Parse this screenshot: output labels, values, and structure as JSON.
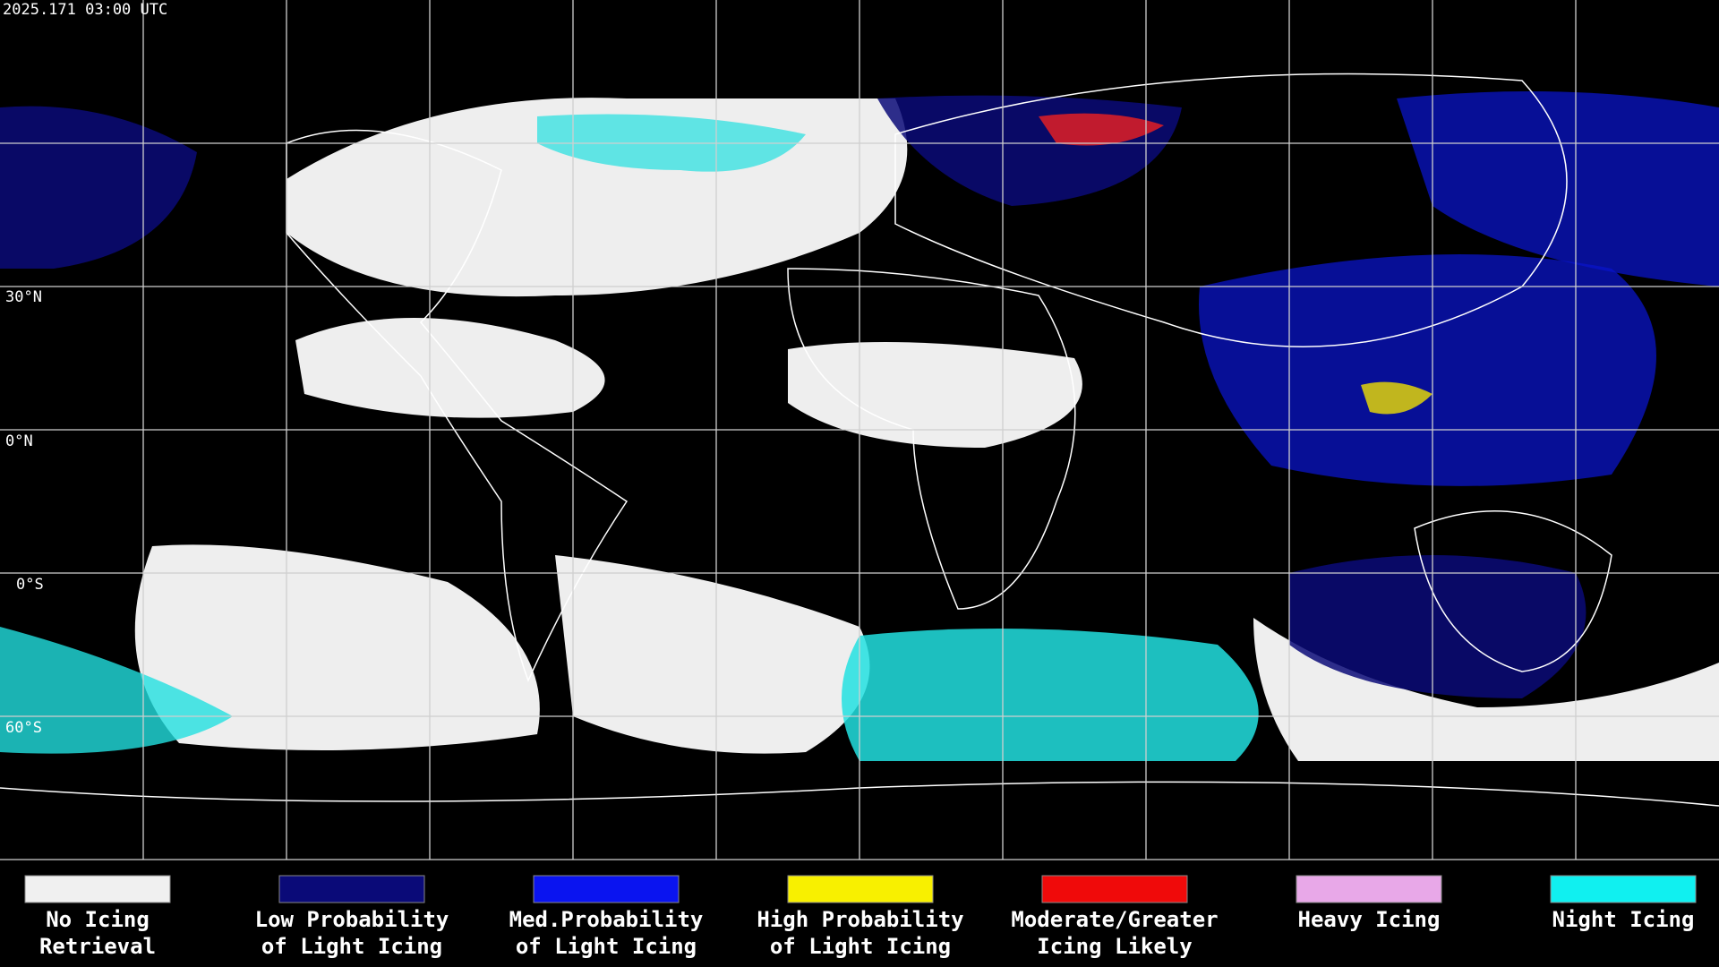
{
  "header": {
    "title": "2025.171 03:00 UTC"
  },
  "latitude_labels": [
    "30°N",
    "0°N",
    "0°S",
    "60°S"
  ],
  "legend": [
    {
      "color": "#f0f0f0",
      "label": [
        "No Icing",
        "Retrieval"
      ]
    },
    {
      "color": "#0a0a78",
      "label": [
        "Low Probability",
        "of Light Icing"
      ]
    },
    {
      "color": "#0a14f0",
      "label": [
        "Med.Probability",
        "of Light Icing"
      ]
    },
    {
      "color": "#f8f000",
      "label": [
        "High Probability",
        "of Light Icing"
      ]
    },
    {
      "color": "#f00a0a",
      "label": [
        "Moderate/Greater",
        "Icing Likely"
      ]
    },
    {
      "color": "#e8a8e8",
      "label": [
        "Heavy Icing",
        ""
      ]
    },
    {
      "color": "#10f0f0",
      "label": [
        "Night Icing",
        ""
      ]
    }
  ]
}
